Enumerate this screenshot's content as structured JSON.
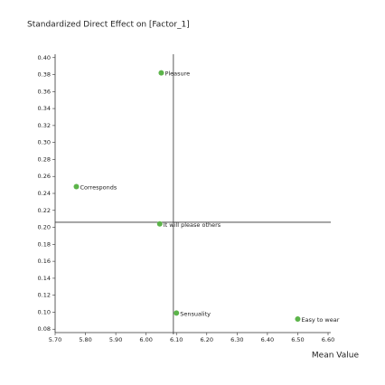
{
  "chart_data": {
    "type": "scatter",
    "title": "Standardized Direct Effect on [Factor_1]",
    "x_label": "Mean Value",
    "x": [
      6.05,
      5.77,
      6.045,
      6.1,
      6.5
    ],
    "values": [
      0.382,
      0.248,
      0.204,
      0.099,
      0.092
    ],
    "labels": [
      "Pleasure",
      "Corresponds",
      "It will please others",
      "Sensuality",
      "Easy to wear"
    ],
    "color": "#5cb44a",
    "x_reference": 6.09,
    "y_reference": 0.206,
    "xlim": [
      5.7,
      6.6
    ],
    "xticks": [
      {
        "value": 5.7,
        "label": "5.70"
      },
      {
        "value": 5.8,
        "label": "5.80"
      },
      {
        "value": 5.9,
        "label": "5.90"
      },
      {
        "value": 6.0,
        "label": "6.00"
      },
      {
        "value": 6.1,
        "label": "6.10"
      },
      {
        "value": 6.2,
        "label": "6.20"
      },
      {
        "value": 6.3,
        "label": "6.30"
      },
      {
        "value": 6.4,
        "label": "6.40"
      },
      {
        "value": 6.5,
        "label": "6.50"
      },
      {
        "value": 6.6,
        "label": "6.60"
      }
    ],
    "ylim": [
      0.076,
      0.404
    ],
    "yticks": [
      {
        "value": 0.08,
        "label": "0.08"
      },
      {
        "value": 0.1,
        "label": "0.10"
      },
      {
        "value": 0.12,
        "label": "0.12"
      },
      {
        "value": 0.14,
        "label": "0.14"
      },
      {
        "value": 0.16,
        "label": "0.16"
      },
      {
        "value": 0.18,
        "label": "0.18"
      },
      {
        "value": 0.2,
        "label": "0.20"
      },
      {
        "value": 0.22,
        "label": "0.22"
      },
      {
        "value": 0.24,
        "label": "0.24"
      },
      {
        "value": 0.26,
        "label": "0.26"
      },
      {
        "value": 0.28,
        "label": "0.28"
      },
      {
        "value": 0.3,
        "label": "0.30"
      },
      {
        "value": 0.32,
        "label": "0.32"
      },
      {
        "value": 0.34,
        "label": "0.34"
      },
      {
        "value": 0.36,
        "label": "0.36"
      },
      {
        "value": 0.38,
        "label": "0.38"
      },
      {
        "value": 0.4,
        "label": "0.40"
      }
    ]
  }
}
